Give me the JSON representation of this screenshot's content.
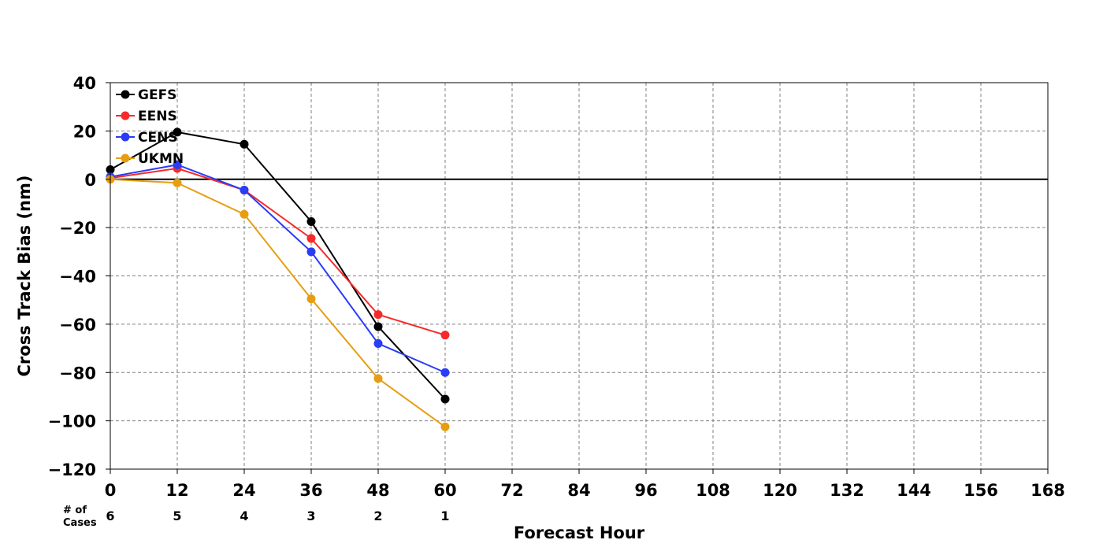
{
  "chart_data": {
    "type": "line",
    "title": "",
    "xlabel": "Forecast Hour",
    "ylabel": "Cross Track Bias (nm)",
    "xlim": [
      0,
      168
    ],
    "ylim": [
      -120,
      40
    ],
    "xticks": [
      0,
      12,
      24,
      36,
      48,
      60,
      72,
      84,
      96,
      108,
      120,
      132,
      144,
      156,
      168
    ],
    "yticks": [
      40,
      20,
      0,
      -20,
      -40,
      -60,
      -80,
      -100,
      -120
    ],
    "ytick_labels": [
      "40",
      "20",
      "0",
      "−20",
      "−40",
      "−60",
      "−80",
      "−100",
      "−120"
    ],
    "grid": true,
    "legend_position": "top-left",
    "zero_line": true,
    "series": [
      {
        "name": "GEFS",
        "color": "#000000",
        "x": [
          0,
          12,
          24,
          36,
          48,
          60
        ],
        "values": [
          4,
          19.5,
          14.5,
          -17.5,
          -61,
          -91
        ]
      },
      {
        "name": "EENS",
        "color": "#f62a2a",
        "x": [
          0,
          12,
          24,
          36,
          48,
          60
        ],
        "values": [
          0.5,
          4.5,
          -4.5,
          -24.5,
          -56,
          -64.5
        ]
      },
      {
        "name": "CENS",
        "color": "#2a3cf6",
        "x": [
          0,
          12,
          24,
          36,
          48,
          60
        ],
        "values": [
          1,
          6,
          -4.5,
          -30,
          -68,
          -80
        ]
      },
      {
        "name": "UKMN",
        "color": "#e69e10",
        "x": [
          0,
          12,
          24,
          36,
          48,
          60
        ],
        "values": [
          0,
          -1.5,
          -14.5,
          -49.5,
          -82.5,
          -102.5
        ]
      }
    ],
    "cases": {
      "label_line1": "# of",
      "label_line2": "Cases",
      "x": [
        0,
        12,
        24,
        36,
        48,
        60
      ],
      "values": [
        "6",
        "5",
        "4",
        "3",
        "2",
        "1"
      ]
    }
  }
}
